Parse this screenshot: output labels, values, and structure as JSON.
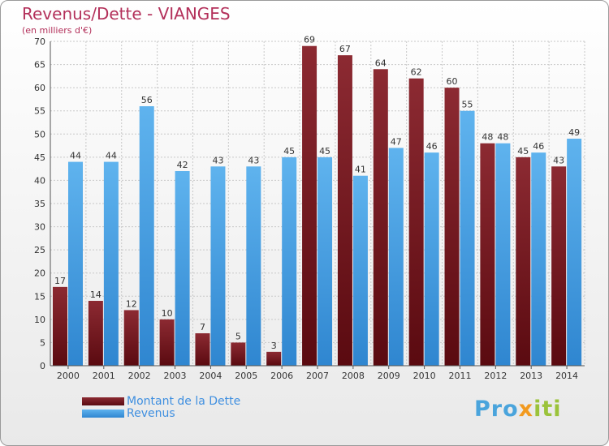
{
  "header": {
    "title": "Revenus/Dette - VIANGES",
    "subtitle": "(en milliers d'€)"
  },
  "chart_data": {
    "type": "bar",
    "title": "Revenus/Dette - VIANGES",
    "subtitle": "(en milliers d'€)",
    "categories": [
      "2000",
      "2001",
      "2002",
      "2003",
      "2004",
      "2005",
      "2006",
      "2007",
      "2008",
      "2009",
      "2010",
      "2011",
      "2012",
      "2013",
      "2014"
    ],
    "series": [
      {
        "name": "Montant de la Dette",
        "color": "#7a1e24",
        "values": [
          17,
          14,
          12,
          10,
          7,
          5,
          3,
          69,
          67,
          64,
          62,
          60,
          48,
          45,
          43
        ]
      },
      {
        "name": "Revenus",
        "color": "#4aa3e6",
        "values": [
          44,
          44,
          56,
          42,
          43,
          43,
          45,
          45,
          41,
          47,
          46,
          55,
          48,
          46,
          49
        ]
      }
    ],
    "ylim": [
      0,
      70
    ],
    "yticks": [
      0,
      5,
      10,
      15,
      20,
      25,
      30,
      35,
      40,
      45,
      50,
      55,
      60,
      65,
      70
    ],
    "grid": true,
    "data_labels": true,
    "legend_position": "bottom-left"
  },
  "legend": {
    "items": [
      {
        "label": "Montant de la Dette",
        "color": "#7a1e24"
      },
      {
        "label": "Revenus",
        "color": "#4aa3e6"
      }
    ]
  },
  "logo": {
    "part1": "Pro",
    "part2": "x",
    "part3": "iti"
  }
}
